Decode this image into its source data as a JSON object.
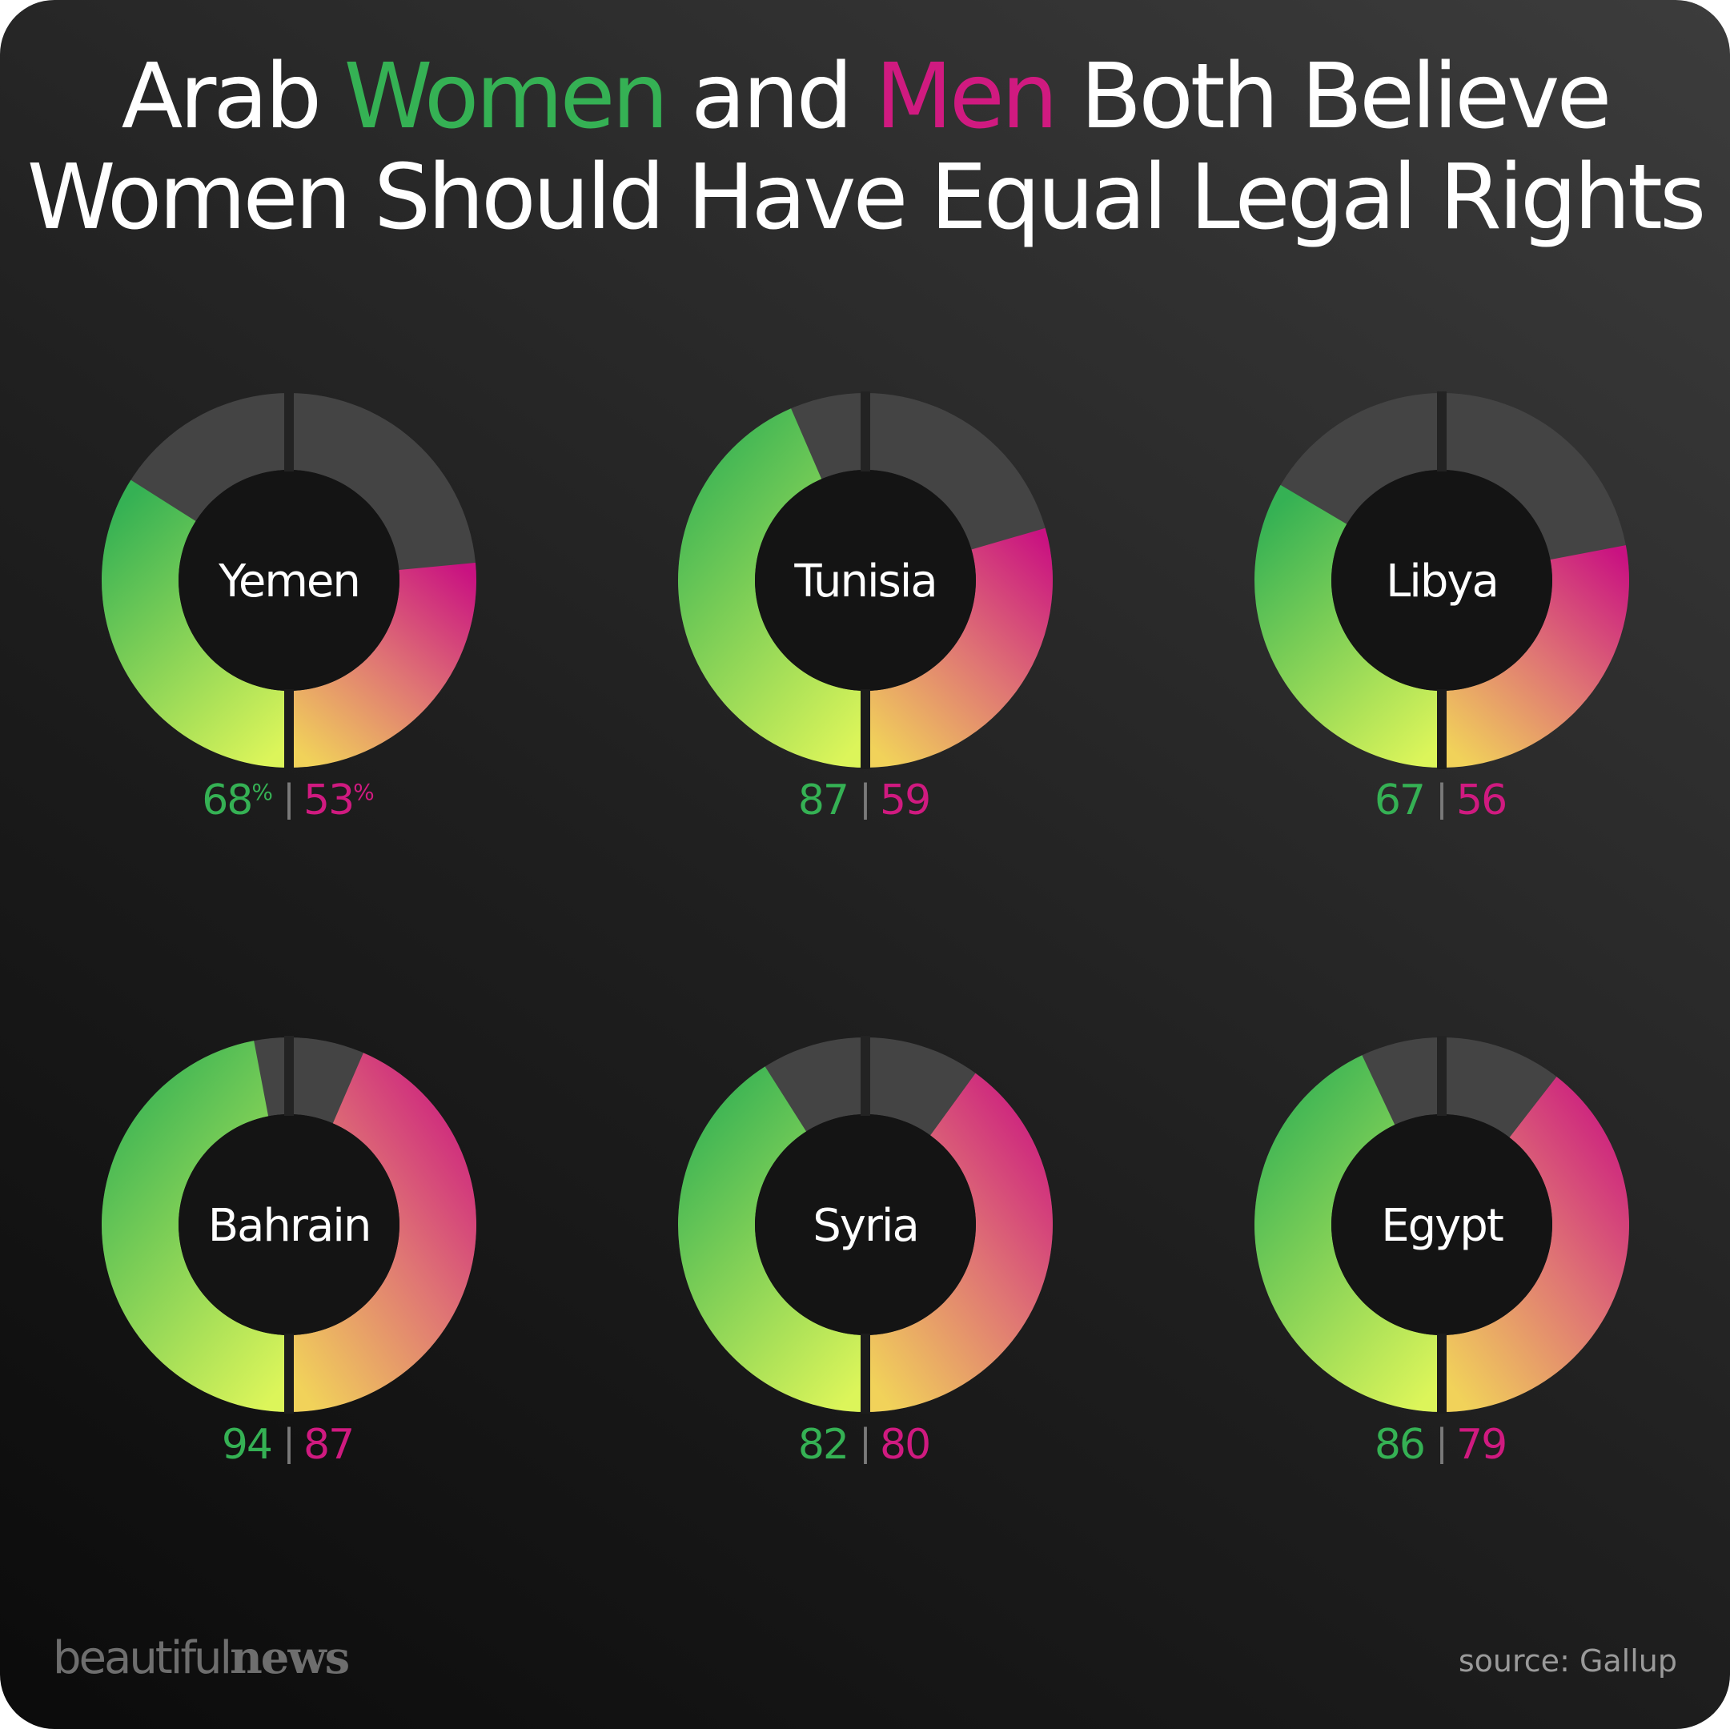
{
  "title": {
    "part1": "Arab ",
    "women": "Women",
    "part2": " and ",
    "men": "Men",
    "part3": " Both Believe",
    "line2": "Women Should Have Equal Legal Rights"
  },
  "colors": {
    "women": "#35b154",
    "men": "#d01a80",
    "track": "#444444",
    "women_gradient": [
      "#dcf55a",
      "#35b154"
    ],
    "men_gradient": [
      "#f1d25a",
      "#c91281"
    ]
  },
  "chart_data": {
    "type": "donut",
    "series": [
      {
        "name": "Women",
        "values": [
          68,
          87,
          67,
          94,
          82,
          86
        ]
      },
      {
        "name": "Men",
        "values": [
          53,
          59,
          56,
          87,
          80,
          79
        ]
      }
    ],
    "categories": [
      "Yemen",
      "Tunisia",
      "Libya",
      "Bahrain",
      "Syria",
      "Egypt"
    ],
    "unit": "%",
    "ylim": [
      0,
      100
    ]
  },
  "charts": [
    {
      "country": "Yemen",
      "women_label": "68",
      "men_label": "53",
      "pct": "%"
    },
    {
      "country": "Tunisia",
      "women_label": "87",
      "men_label": "59",
      "pct": ""
    },
    {
      "country": "Libya",
      "women_label": "67",
      "men_label": "56",
      "pct": ""
    },
    {
      "country": "Bahrain",
      "women_label": "94",
      "men_label": "87",
      "pct": ""
    },
    {
      "country": "Syria",
      "women_label": "82",
      "men_label": "80",
      "pct": ""
    },
    {
      "country": "Egypt",
      "women_label": "86",
      "men_label": "79",
      "pct": ""
    }
  ],
  "separator": "|",
  "brand": {
    "light": "beautiful",
    "bold": "news"
  },
  "source": "source: Gallup"
}
